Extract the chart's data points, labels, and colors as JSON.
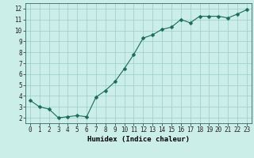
{
  "x": [
    0,
    1,
    2,
    3,
    4,
    5,
    6,
    7,
    8,
    9,
    10,
    11,
    12,
    13,
    14,
    15,
    16,
    17,
    18,
    19,
    20,
    21,
    22,
    23
  ],
  "y": [
    3.6,
    3.0,
    2.8,
    2.0,
    2.1,
    2.2,
    2.1,
    3.9,
    4.5,
    5.3,
    6.5,
    7.8,
    9.3,
    9.6,
    10.1,
    10.3,
    11.0,
    10.7,
    11.3,
    11.3,
    11.3,
    11.15,
    11.5,
    11.9
  ],
  "line_color": "#1a6b5a",
  "marker": "D",
  "marker_size": 2.5,
  "bg_color": "#cceee8",
  "grid_color": "#99cccc",
  "xlabel": "Humidex (Indice chaleur)",
  "xlim": [
    -0.5,
    23.5
  ],
  "ylim": [
    1.5,
    12.5
  ],
  "yticks": [
    2,
    3,
    4,
    5,
    6,
    7,
    8,
    9,
    10,
    11,
    12
  ],
  "xticks": [
    0,
    1,
    2,
    3,
    4,
    5,
    6,
    7,
    8,
    9,
    10,
    11,
    12,
    13,
    14,
    15,
    16,
    17,
    18,
    19,
    20,
    21,
    22,
    23
  ],
  "label_fontsize": 6.5,
  "tick_fontsize": 5.5
}
